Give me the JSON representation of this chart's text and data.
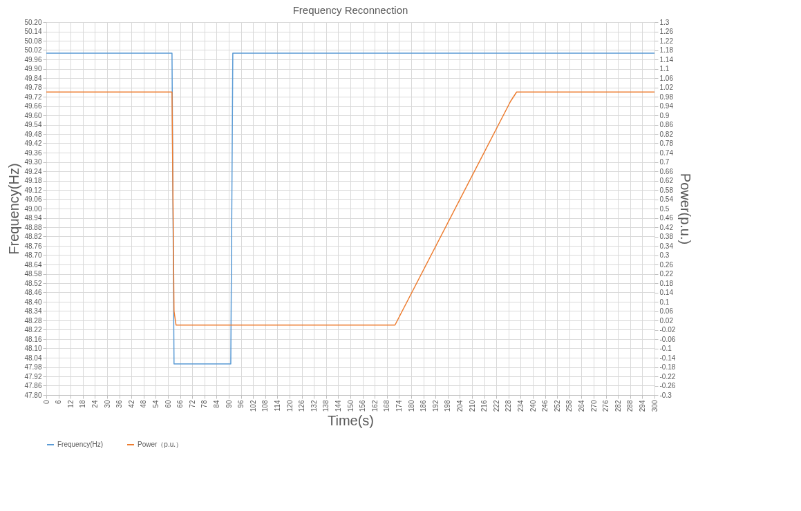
{
  "chart_data": {
    "type": "line",
    "title": "Frequency Reconnection",
    "xlabel": "Time(s)",
    "ylabel": "Frequency(Hz)",
    "y2label": "Power(p.u.)",
    "xlim": [
      0,
      300
    ],
    "xticks": [
      0,
      6,
      12,
      18,
      24,
      30,
      36,
      42,
      48,
      54,
      60,
      66,
      72,
      78,
      84,
      90,
      96,
      102,
      108,
      114,
      120,
      126,
      132,
      138,
      144,
      150,
      156,
      162,
      168,
      174,
      180,
      186,
      192,
      198,
      204,
      210,
      216,
      222,
      228,
      234,
      240,
      246,
      252,
      258,
      264,
      270,
      276,
      282,
      288,
      294,
      300
    ],
    "ylim": [
      47.8,
      50.2
    ],
    "yticks": [
      {
        "value": 47.8,
        "label": "47.80"
      },
      47.86,
      47.92,
      47.98,
      48.04,
      {
        "value": 48.1,
        "label": "48.10"
      },
      48.16,
      48.22,
      48.28,
      48.34,
      {
        "value": 48.4,
        "label": "48.40"
      },
      48.46,
      48.52,
      48.58,
      48.64,
      {
        "value": 48.7,
        "label": "48.70"
      },
      48.76,
      48.82,
      48.88,
      48.94,
      {
        "value": 49,
        "label": "49.00"
      },
      49.06,
      49.12,
      49.18,
      49.24,
      {
        "value": 49.3,
        "label": "49.30"
      },
      49.36,
      49.42,
      49.48,
      49.54,
      {
        "value": 49.6,
        "label": "49.60"
      },
      49.66,
      49.72,
      49.78,
      49.84,
      {
        "value": 49.9,
        "label": "49.90"
      },
      49.96,
      50.02,
      50.08,
      50.14,
      {
        "value": 50.2,
        "label": "50.20"
      }
    ],
    "y2lim": [
      -0.3,
      1.3
    ],
    "y2ticks": [
      -0.3,
      -0.26,
      -0.22,
      -0.18,
      -0.14,
      -0.1,
      -0.06,
      -0.02,
      0.02,
      0.06,
      0.1,
      0.14,
      0.18,
      0.22,
      0.26,
      0.3,
      0.34,
      0.38,
      0.42,
      0.46,
      0.5,
      0.54,
      0.58,
      0.62,
      0.66,
      0.7,
      0.74,
      0.78,
      0.82,
      0.86,
      0.9,
      0.94,
      0.98,
      1.02,
      1.06,
      1.1,
      1.14,
      1.18,
      1.22,
      1.26,
      1.3
    ],
    "grid": true,
    "legend": "bottom",
    "series": [
      {
        "name": "Frequency(Hz)",
        "color": "#5b9bd5",
        "x": [
          0,
          62,
          63,
          91,
          92,
          300
        ],
        "values": [
          50.0,
          50.0,
          48.0,
          48.0,
          50.0,
          50.0
        ]
      },
      {
        "name": "Power（p.u.）",
        "color": "#ed7d31",
        "axis": "y2",
        "x": [
          0,
          62,
          63,
          64,
          172,
          229,
          232,
          300
        ],
        "values": [
          1.0,
          1.0,
          0.06,
          0.0,
          0.0,
          0.96,
          1.0,
          1.0
        ]
      }
    ]
  }
}
